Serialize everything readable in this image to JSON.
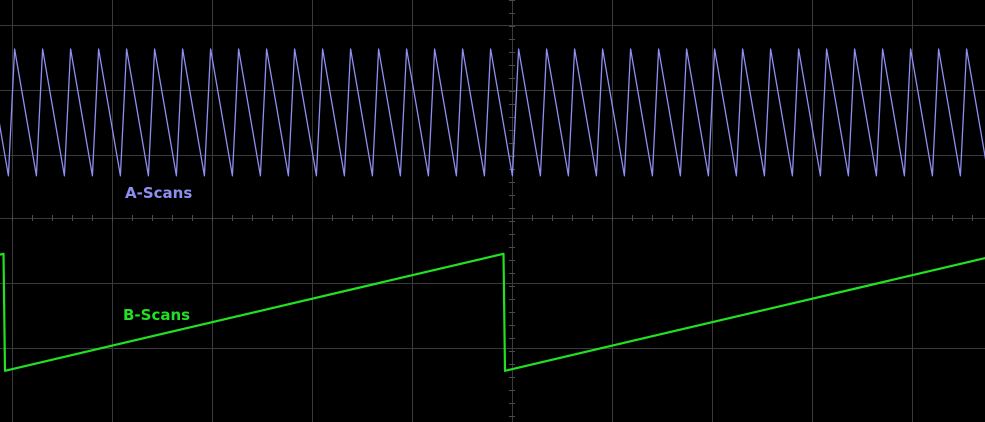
{
  "screen": {
    "background": "#000000",
    "grid_color": "#3a3a3a",
    "grid": true
  },
  "chart_data": {
    "type": "line",
    "title": "",
    "grid": true,
    "series": [
      {
        "name": "A-Scans",
        "color": "#8f8ff2",
        "waveform": "sawtooth",
        "ramp_direction": "falling",
        "period_divisions": 0.28,
        "high_divisions": 2.6,
        "low_divisions": 0.65,
        "start_phase": 0.7
      },
      {
        "name": "B-Scans",
        "color": "#22e022",
        "waveform": "sawtooth",
        "ramp_direction": "rising",
        "period_divisions": 5.0,
        "high_divisions": -0.55,
        "low_divisions": -2.35,
        "start_phase": 0.99
      }
    ]
  }
}
